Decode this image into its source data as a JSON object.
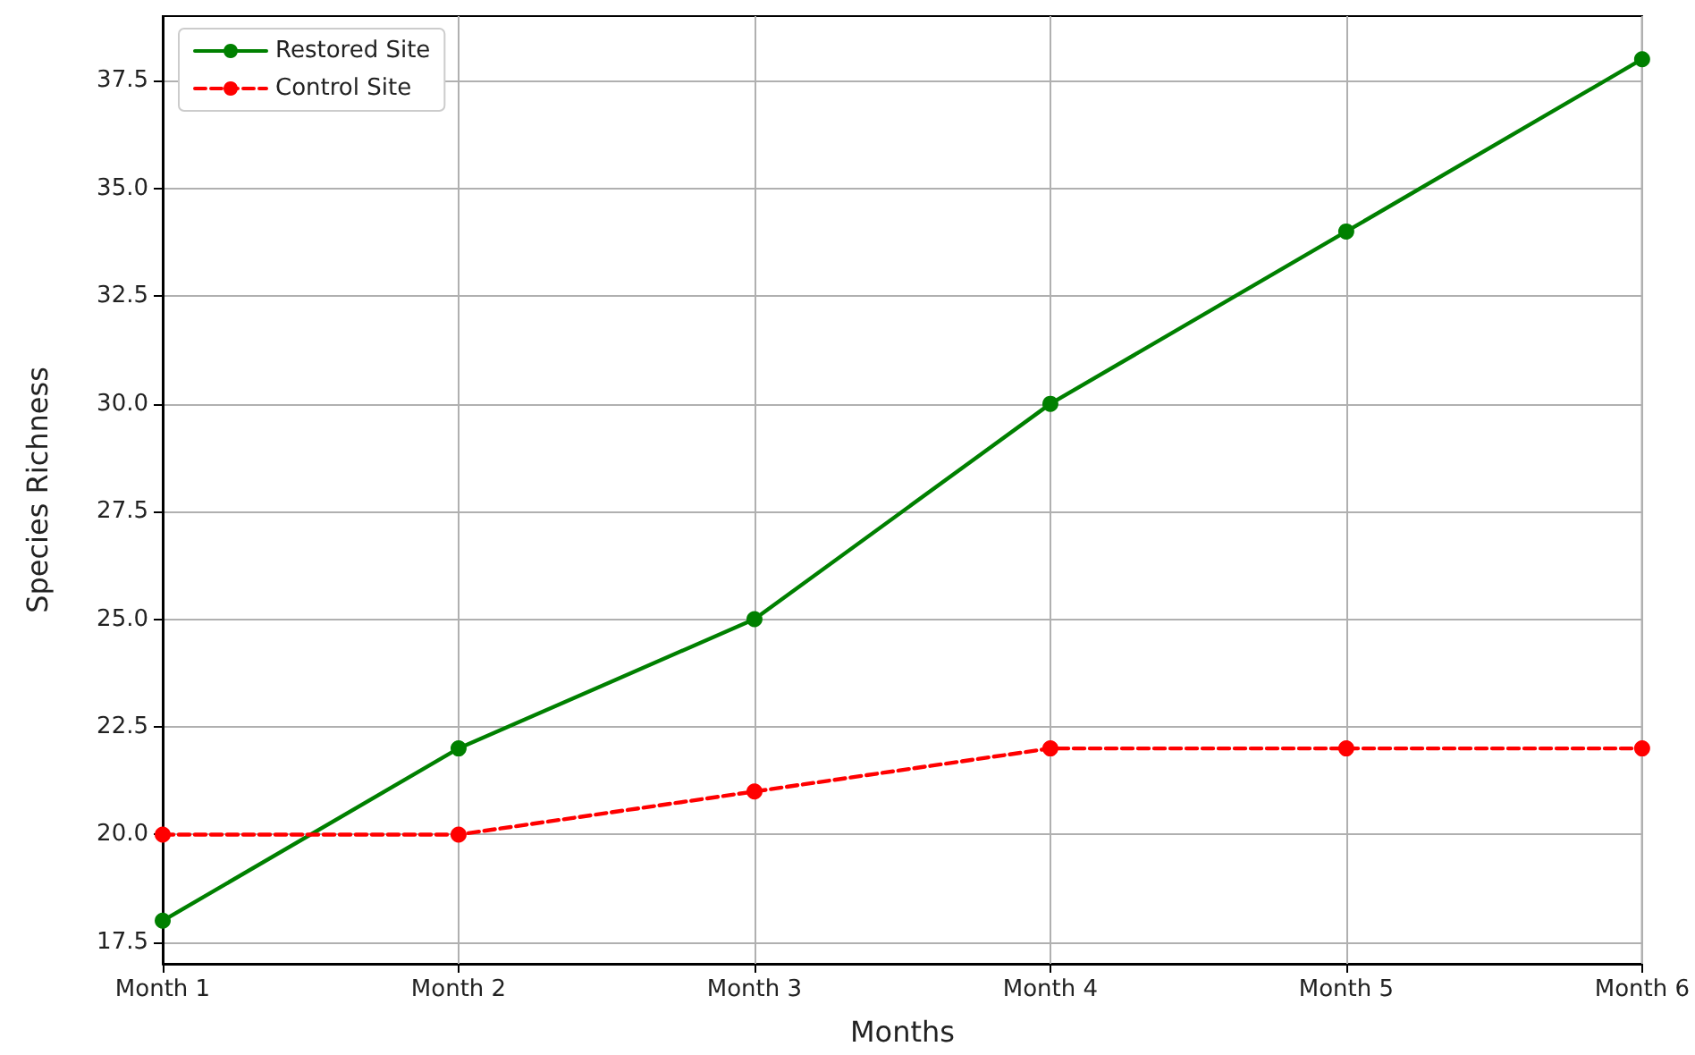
{
  "chart_data": {
    "type": "line",
    "xlabel": "Months",
    "ylabel": "Species Richness",
    "categories": [
      "Month 1",
      "Month 2",
      "Month 3",
      "Month 4",
      "Month 5",
      "Month 6"
    ],
    "series": [
      {
        "name": "Restored Site",
        "color": "#008000",
        "values": [
          18,
          22,
          25,
          30,
          34,
          38
        ],
        "line_style": "solid"
      },
      {
        "name": "Control Site",
        "color": "#ff0000",
        "values": [
          20,
          20,
          21,
          22,
          22,
          22
        ],
        "line_style": "dashed"
      }
    ],
    "ylim": [
      17,
      39
    ],
    "yticks": [
      {
        "value": 17.5,
        "label": "17.5"
      },
      {
        "value": 20,
        "label": "20.0"
      },
      {
        "value": 22.5,
        "label": "22.5"
      },
      {
        "value": 25,
        "label": "25.0"
      },
      {
        "value": 27.5,
        "label": "27.5"
      },
      {
        "value": 30,
        "label": "30.0"
      },
      {
        "value": 32.5,
        "label": "32.5"
      },
      {
        "value": 35,
        "label": "35.0"
      },
      {
        "value": 37.5,
        "label": "37.5"
      }
    ],
    "grid": true,
    "legend": "top left",
    "marker": "circle"
  }
}
